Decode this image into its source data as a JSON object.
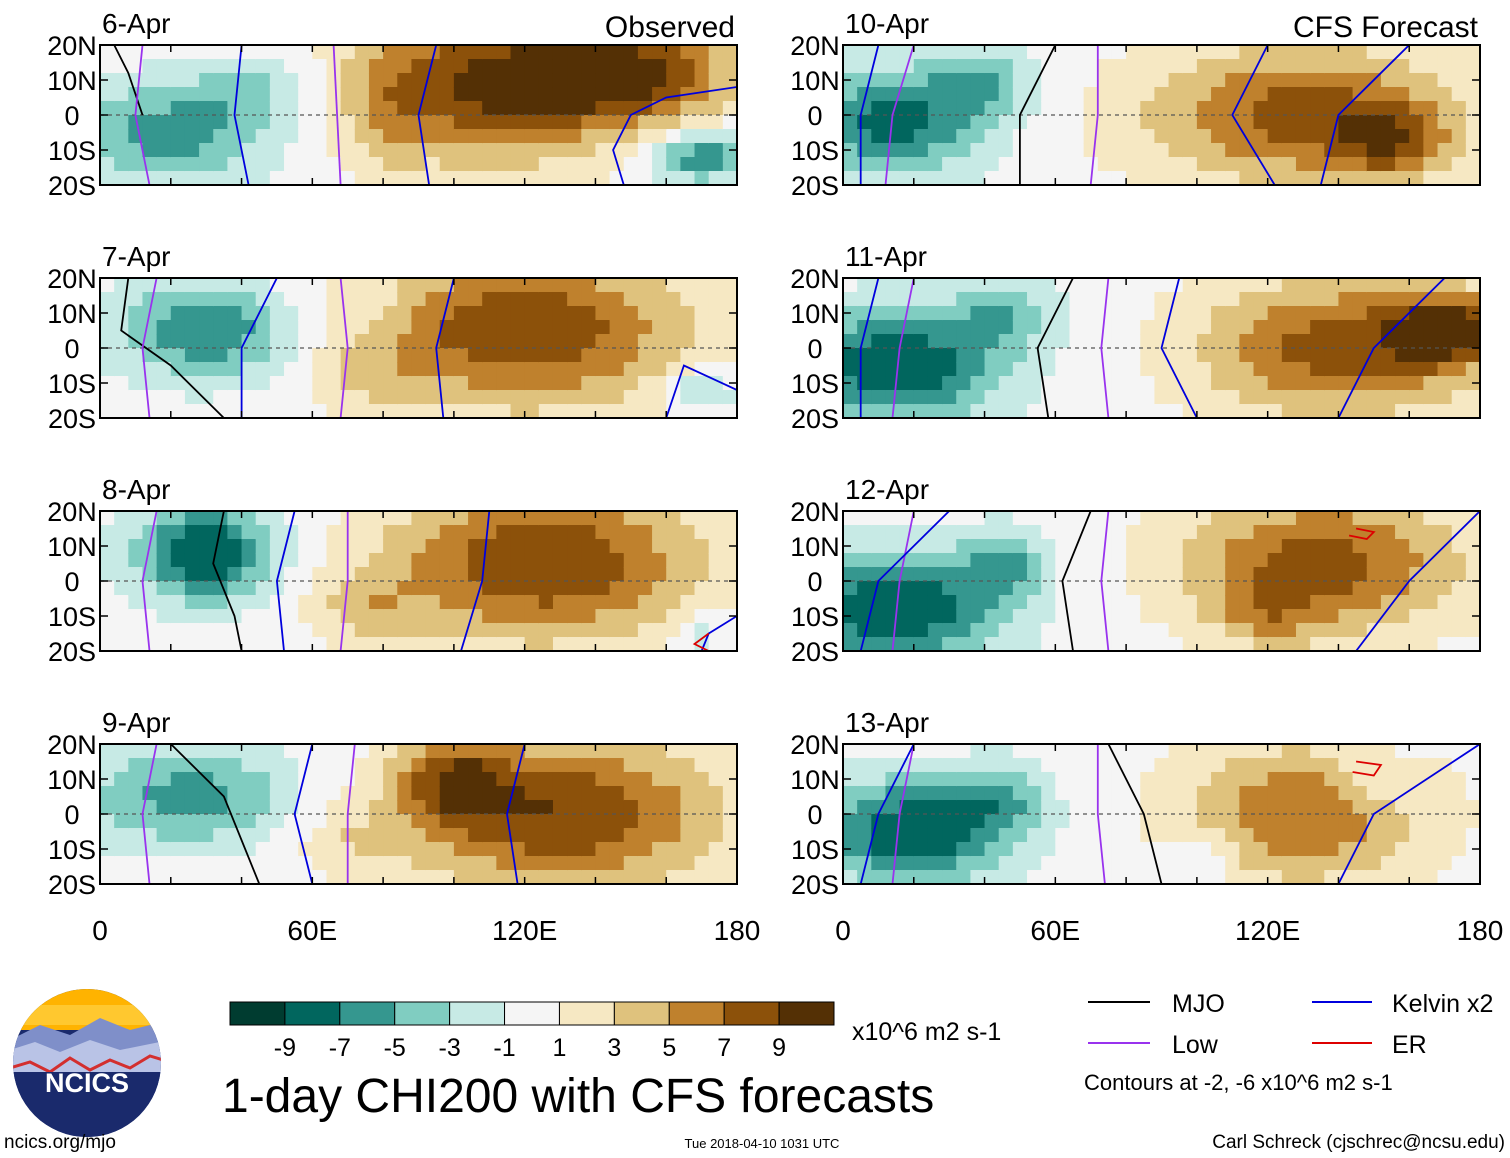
{
  "colors": {
    "scale": [
      "#003c30",
      "#01665e",
      "#35978f",
      "#80cdc1",
      "#c7eae5",
      "#f5f5f5",
      "#f6e8c3",
      "#dfc27d",
      "#bf812d",
      "#8c510a",
      "#543005"
    ],
    "mjo": "#000000",
    "low": "#9933ee",
    "kelvin": "#0000dd",
    "er": "#dd0000",
    "coast": "#666666"
  },
  "chart_data": {
    "type": "heatmap",
    "title": "1-day CHI200 with CFS forecasts",
    "units": "x10^6 m2 s-1",
    "x_ticks": [
      "0",
      "60E",
      "120E",
      "180"
    ],
    "x_range": [
      0,
      180
    ],
    "y_ticks": [
      "20N",
      "10N",
      "0",
      "10S",
      "20S"
    ],
    "y_range": [
      -20,
      20
    ],
    "colorbar": {
      "ticks": [
        "-9",
        "-7",
        "-5",
        "-3",
        "-1",
        "1",
        "3",
        "5",
        "7",
        "9"
      ],
      "levels": [
        -11,
        -9,
        -7,
        -5,
        -3,
        -1,
        1,
        3,
        5,
        7,
        9,
        11
      ]
    },
    "column_titles": {
      "left": "Observed",
      "right": "CFS Forecast"
    },
    "panels": [
      {
        "date": "6-Apr",
        "column": "left",
        "row": 0,
        "label": "Observed",
        "blobs": [
          [
            20,
            -5,
            30,
            14,
            -6
          ],
          [
            45,
            8,
            20,
            10,
            -3
          ],
          [
            170,
            -12,
            14,
            7,
            -7
          ],
          [
            110,
            8,
            40,
            22,
            9
          ],
          [
            150,
            12,
            30,
            14,
            8
          ],
          [
            80,
            0,
            10,
            20,
            2
          ]
        ],
        "mjo": [
          [
            4,
            20
          ],
          [
            8,
            12
          ],
          [
            12,
            0
          ]
        ],
        "low": [
          [
            [
              12,
              20
            ],
            [
              10,
              0
            ],
            [
              14,
              -20
            ]
          ],
          [
            [
              66,
              20
            ],
            [
              67,
              0
            ],
            [
              68,
              -20
            ]
          ]
        ],
        "kelvin": [
          [
            [
              40,
              20
            ],
            [
              38,
              0
            ],
            [
              42,
              -20
            ]
          ],
          [
            [
              95,
              20
            ],
            [
              90,
              0
            ],
            [
              93,
              -20
            ]
          ],
          [
            [
              180,
              8
            ],
            [
              160,
              5
            ],
            [
              150,
              0
            ],
            [
              145,
              -10
            ],
            [
              148,
              -20
            ]
          ]
        ]
      },
      {
        "date": "7-Apr",
        "column": "left",
        "row": 1,
        "blobs": [
          [
            30,
            5,
            25,
            14,
            -7
          ],
          [
            170,
            -12,
            10,
            6,
            -4
          ],
          [
            120,
            5,
            45,
            22,
            9
          ],
          [
            80,
            10,
            10,
            10,
            -1
          ],
          [
            75,
            -8,
            15,
            10,
            2
          ]
        ],
        "mjo": [
          [
            [
              8,
              20
            ],
            [
              6,
              5
            ],
            [
              20,
              -5
            ],
            [
              35,
              -20
            ]
          ]
        ],
        "low": [
          [
            [
              16,
              20
            ],
            [
              12,
              0
            ],
            [
              14,
              -20
            ]
          ],
          [
            [
              68,
              20
            ],
            [
              70,
              0
            ],
            [
              68,
              -20
            ]
          ]
        ],
        "kelvin": [
          [
            [
              50,
              20
            ],
            [
              40,
              0
            ],
            [
              40,
              -20
            ]
          ],
          [
            [
              100,
              20
            ],
            [
              95,
              0
            ],
            [
              97,
              -20
            ]
          ],
          [
            [
              180,
              -12
            ],
            [
              165,
              -5
            ],
            [
              160,
              -20
            ]
          ]
        ]
      },
      {
        "date": "8-Apr",
        "column": "left",
        "row": 2,
        "blobs": [
          [
            30,
            8,
            20,
            14,
            -9
          ],
          [
            125,
            5,
            45,
            22,
            9
          ],
          [
            170,
            -15,
            8,
            6,
            -3
          ],
          [
            75,
            -8,
            15,
            10,
            3
          ]
        ],
        "mjo": [
          [
            [
              35,
              20
            ],
            [
              32,
              5
            ],
            [
              38,
              -10
            ],
            [
              40,
              -20
            ]
          ]
        ],
        "low": [
          [
            [
              16,
              20
            ],
            [
              12,
              0
            ],
            [
              14,
              -20
            ]
          ],
          [
            [
              70,
              20
            ],
            [
              70,
              0
            ],
            [
              68,
              -20
            ]
          ]
        ],
        "kelvin": [
          [
            [
              55,
              20
            ],
            [
              50,
              0
            ],
            [
              52,
              -20
            ]
          ],
          [
            [
              110,
              20
            ],
            [
              108,
              0
            ],
            [
              102,
              -20
            ]
          ],
          [
            [
              180,
              -10
            ],
            [
              172,
              -15
            ],
            [
              170,
              -20
            ]
          ]
        ],
        "er": [
          [
            [
              172,
              -15
            ],
            [
              168,
              -18
            ],
            [
              172,
              -20
            ]
          ]
        ]
      },
      {
        "date": "9-Apr",
        "column": "left",
        "row": 3,
        "blobs": [
          [
            25,
            5,
            30,
            14,
            -6
          ],
          [
            130,
            0,
            45,
            22,
            9
          ],
          [
            100,
            10,
            15,
            12,
            6
          ],
          [
            70,
            -8,
            15,
            10,
            2
          ]
        ],
        "mjo": [
          [
            [
              20,
              20
            ],
            [
              35,
              5
            ],
            [
              45,
              -20
            ]
          ]
        ],
        "low": [
          [
            [
              16,
              20
            ],
            [
              12,
              0
            ],
            [
              14,
              -20
            ]
          ],
          [
            [
              72,
              20
            ],
            [
              70,
              0
            ],
            [
              70,
              -20
            ]
          ]
        ],
        "kelvin": [
          [
            [
              60,
              20
            ],
            [
              55,
              0
            ],
            [
              60,
              -20
            ]
          ],
          [
            [
              120,
              20
            ],
            [
              115,
              0
            ],
            [
              118,
              -20
            ]
          ]
        ]
      },
      {
        "date": "10-Apr",
        "column": "right",
        "row": 0,
        "label": "CFS Forecast",
        "blobs": [
          [
            15,
            -2,
            25,
            15,
            -8
          ],
          [
            130,
            0,
            45,
            20,
            8
          ],
          [
            155,
            -8,
            15,
            10,
            5
          ],
          [
            40,
            10,
            15,
            10,
            -4
          ]
        ],
        "mjo": [
          [
            [
              60,
              20
            ],
            [
              50,
              0
            ],
            [
              50,
              -20
            ]
          ]
        ],
        "low": [
          [
            [
              20,
              20
            ],
            [
              14,
              0
            ],
            [
              12,
              -20
            ]
          ],
          [
            [
              72,
              20
            ],
            [
              72,
              0
            ],
            [
              70,
              -20
            ]
          ]
        ],
        "kelvin": [
          [
            [
              10,
              20
            ],
            [
              5,
              0
            ],
            [
              5,
              -20
            ]
          ],
          [
            [
              120,
              20
            ],
            [
              110,
              0
            ],
            [
              122,
              -20
            ]
          ],
          [
            [
              160,
              20
            ],
            [
              140,
              0
            ],
            [
              135,
              -20
            ]
          ]
        ]
      },
      {
        "date": "11-Apr",
        "column": "right",
        "row": 1,
        "blobs": [
          [
            15,
            -5,
            30,
            16,
            -9
          ],
          [
            140,
            0,
            40,
            20,
            8
          ],
          [
            170,
            5,
            15,
            10,
            9
          ],
          [
            45,
            10,
            15,
            10,
            -4
          ]
        ],
        "mjo": [
          [
            [
              65,
              20
            ],
            [
              55,
              0
            ],
            [
              58,
              -20
            ]
          ]
        ],
        "low": [
          [
            [
              20,
              20
            ],
            [
              16,
              0
            ],
            [
              14,
              -20
            ]
          ],
          [
            [
              75,
              20
            ],
            [
              73,
              0
            ],
            [
              75,
              -20
            ]
          ]
        ],
        "kelvin": [
          [
            [
              10,
              20
            ],
            [
              5,
              0
            ],
            [
              5,
              -20
            ]
          ],
          [
            [
              95,
              20
            ],
            [
              90,
              0
            ],
            [
              100,
              -20
            ]
          ],
          [
            [
              170,
              20
            ],
            [
              150,
              0
            ],
            [
              140,
              -20
            ]
          ]
        ]
      },
      {
        "date": "12-Apr",
        "column": "right",
        "row": 2,
        "blobs": [
          [
            15,
            -8,
            30,
            16,
            -9
          ],
          [
            135,
            5,
            40,
            20,
            8
          ],
          [
            120,
            -10,
            15,
            10,
            3
          ],
          [
            45,
            5,
            12,
            10,
            -5
          ]
        ],
        "mjo": [
          [
            [
              70,
              20
            ],
            [
              62,
              0
            ],
            [
              65,
              -20
            ]
          ]
        ],
        "low": [
          [
            [
              20,
              20
            ],
            [
              16,
              0
            ],
            [
              14,
              -20
            ]
          ],
          [
            [
              75,
              20
            ],
            [
              73,
              0
            ],
            [
              75,
              -20
            ]
          ]
        ],
        "kelvin": [
          [
            [
              30,
              20
            ],
            [
              10,
              0
            ],
            [
              5,
              -20
            ]
          ],
          [
            [
              180,
              20
            ],
            [
              160,
              0
            ],
            [
              145,
              -20
            ]
          ]
        ],
        "er": [
          [
            [
              145,
              15
            ],
            [
              150,
              14
            ],
            [
              148,
              12
            ],
            [
              143,
              13
            ]
          ]
        ]
      },
      {
        "date": "13-Apr",
        "column": "right",
        "row": 3,
        "blobs": [
          [
            20,
            -5,
            28,
            15,
            -9
          ],
          [
            130,
            0,
            35,
            20,
            7
          ],
          [
            150,
            10,
            12,
            10,
            -2
          ],
          [
            100,
            -12,
            10,
            8,
            -3
          ],
          [
            45,
            5,
            12,
            10,
            -4
          ]
        ],
        "mjo": [
          [
            [
              75,
              20
            ],
            [
              85,
              0
            ],
            [
              90,
              -20
            ]
          ]
        ],
        "low": [
          [
            [
              20,
              20
            ],
            [
              16,
              0
            ],
            [
              14,
              -20
            ]
          ],
          [
            [
              72,
              20
            ],
            [
              72,
              0
            ],
            [
              74,
              -20
            ]
          ]
        ],
        "kelvin": [
          [
            [
              20,
              20
            ],
            [
              10,
              0
            ],
            [
              5,
              -20
            ]
          ],
          [
            [
              180,
              20
            ],
            [
              150,
              0
            ],
            [
              140,
              -20
            ]
          ]
        ],
        "er": [
          [
            [
              145,
              15
            ],
            [
              152,
              14
            ],
            [
              150,
              11
            ],
            [
              144,
              12
            ]
          ]
        ]
      }
    ],
    "legend": {
      "entries": [
        {
          "name": "MJO",
          "color_key": "mjo"
        },
        {
          "name": "Kelvin x2",
          "color_key": "kelvin"
        },
        {
          "name": "Low",
          "color_key": "low"
        },
        {
          "name": "ER",
          "color_key": "er"
        }
      ],
      "note": "Contours at -2, -6 x10^6 m2 s-1"
    }
  },
  "footer": {
    "site": "ncics.org/mjo",
    "timestamp": "Tue 2018-04-10 1031 UTC",
    "author": "Carl Schreck (cjschrec@ncsu.edu)",
    "logo_text": "NCICS"
  }
}
